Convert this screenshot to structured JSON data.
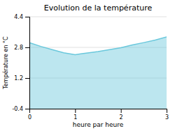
{
  "chart_data": {
    "type": "area",
    "title": "Evolution de la température",
    "xlabel": "heure par heure",
    "ylabel": "Température en °C",
    "x": [
      0,
      0.25,
      0.5,
      0.75,
      1.0,
      1.15,
      1.3,
      1.5,
      1.75,
      2.0,
      2.25,
      2.5,
      2.75,
      3.0
    ],
    "values": [
      3.05,
      2.85,
      2.68,
      2.52,
      2.42,
      2.47,
      2.52,
      2.58,
      2.68,
      2.78,
      2.93,
      3.05,
      3.18,
      3.35
    ],
    "xlim": [
      0,
      3
    ],
    "ylim": [
      -0.4,
      4.4
    ],
    "xticks": [
      0,
      1,
      2,
      3
    ],
    "yticks": [
      -0.4,
      1.2,
      2.8,
      4.4
    ],
    "grid": true,
    "color": "#6ac8dc"
  }
}
